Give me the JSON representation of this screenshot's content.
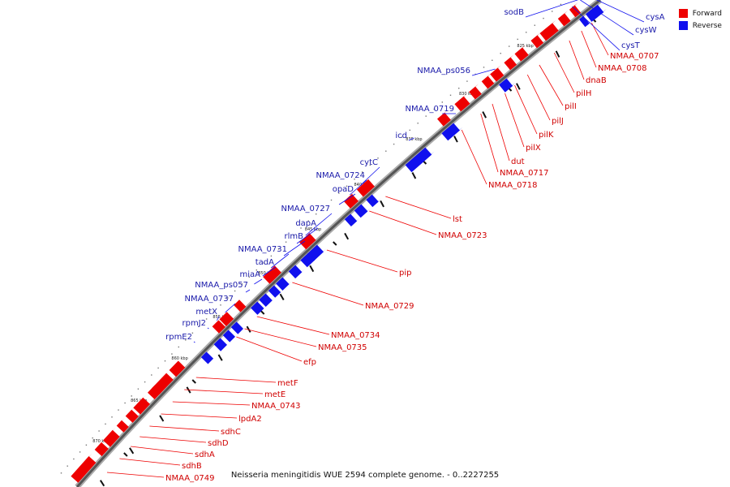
{
  "legend": {
    "forward_label": "Forward",
    "reverse_label": "Reverse",
    "forward_color": "#ee0000",
    "reverse_color": "#1010ee"
  },
  "caption": "Neisseria meningitidis WUE 2594 complete genome. - 0..2227255",
  "kbp_ticks": [
    "825 kbp",
    "830 kbp",
    "835 kbp",
    "840 kbp",
    "845 kbp",
    "850 kbp",
    "855 kbp",
    "860 kbp",
    "865 kbp",
    "870 kbp"
  ],
  "forward_genes": [
    "NMAA_0707",
    "NMAA_0708",
    "dnaB",
    "pilH",
    "pilI",
    "pilJ",
    "pilK",
    "pilX",
    "dut",
    "NMAA_0717",
    "NMAA_0718",
    "lst",
    "NMAA_0723",
    "pip",
    "NMAA_0729",
    "NMAA_0734",
    "NMAA_0735",
    "efp",
    "metF",
    "metE",
    "NMAA_0743",
    "lpdA2",
    "sdhC",
    "sdhD",
    "sdhA",
    "sdhB",
    "NMAA_0749"
  ],
  "reverse_genes": [
    "sodB",
    "cysA",
    "cysW",
    "cysT",
    "NMAA_ps056",
    "NMAA_0719",
    "icd",
    "cytC",
    "NMAA_0724",
    "opaD",
    "NMAA_0727",
    "dapA",
    "rlmB",
    "NMAA_0731",
    "tadA",
    "miaA",
    "NMAA_ps057",
    "NMAA_0737",
    "metX",
    "rpmJ2",
    "rpmE2"
  ]
}
